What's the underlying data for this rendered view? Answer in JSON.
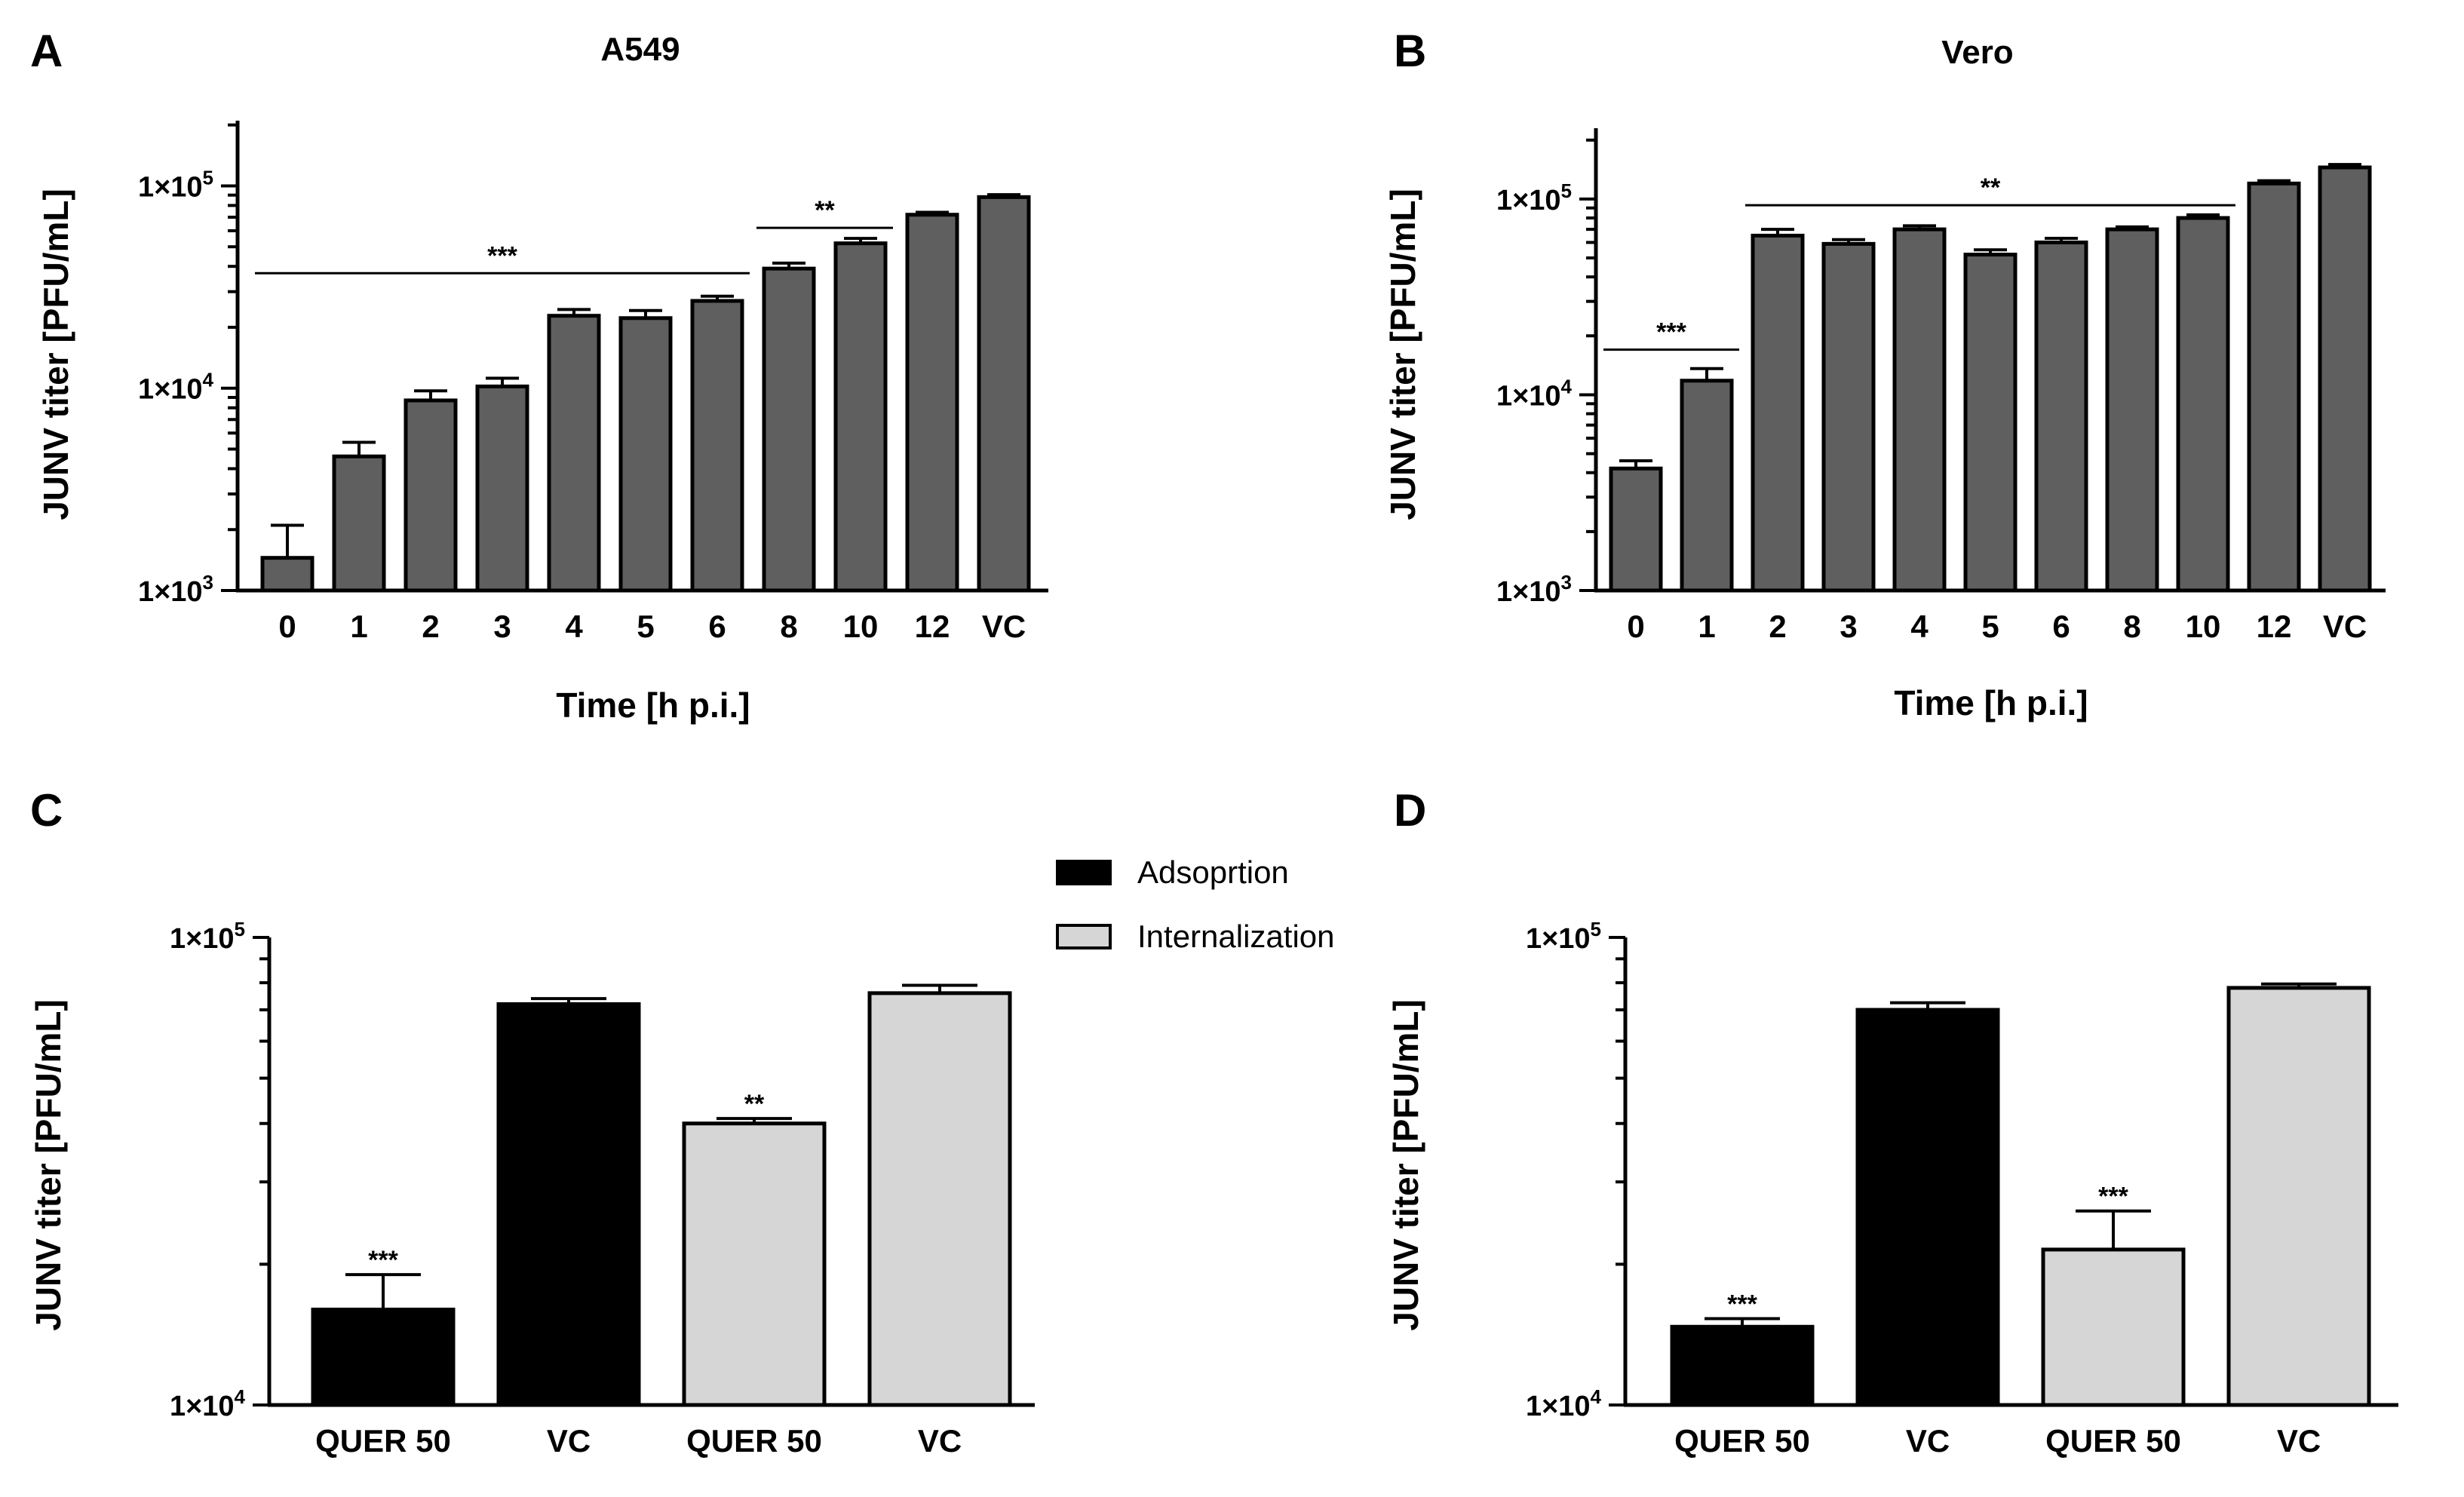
{
  "figure": {
    "colors": {
      "grey_bar": "#5f5f5f",
      "black_bar": "#000000",
      "light_bar": "#d6d6d6",
      "outline": "#000000"
    }
  },
  "legend": {
    "items": [
      {
        "label": "Adsoprtion",
        "color": "#000000"
      },
      {
        "label": "Internalization",
        "color": "#d6d6d6"
      }
    ]
  },
  "chart_data": [
    {
      "panel": "A",
      "title": "A549",
      "type": "bar",
      "ylabel": "JUNV titer [PFU/mL]",
      "xlabel": "Time [h p.i.]",
      "yscale": "log",
      "ylim": [
        1000,
        210000
      ],
      "yticks": [
        1000,
        10000,
        100000
      ],
      "ytick_labels": [
        [
          "1×10",
          "3"
        ],
        [
          "1×10",
          "4"
        ],
        [
          "1×10",
          "5"
        ]
      ],
      "categories": [
        "0",
        "1",
        "2",
        "3",
        "4",
        "5",
        "6",
        "8",
        "10",
        "12",
        "VC"
      ],
      "values": [
        1450,
        4600,
        8700,
        10200,
        22800,
        22200,
        27000,
        39000,
        52000,
        72000,
        88000
      ],
      "errors": [
        650,
        800,
        1000,
        1000,
        1700,
        2000,
        1500,
        2500,
        3000,
        2000,
        2500
      ],
      "bar_colors": [
        "#5f5f5f",
        "#5f5f5f",
        "#5f5f5f",
        "#5f5f5f",
        "#5f5f5f",
        "#5f5f5f",
        "#5f5f5f",
        "#5f5f5f",
        "#5f5f5f",
        "#5f5f5f",
        "#5f5f5f"
      ],
      "significance": [
        {
          "text": "***",
          "from": 0,
          "to": 6,
          "level": 37000
        },
        {
          "text": "**",
          "from": 7,
          "to": 8,
          "level": 62000
        }
      ]
    },
    {
      "panel": "B",
      "title": "Vero",
      "type": "bar",
      "ylabel": "JUNV titer [PFU/mL]",
      "xlabel": "Time [h p.i.]",
      "yscale": "log",
      "ylim": [
        1000,
        230000
      ],
      "yticks": [
        1000,
        10000,
        100000
      ],
      "ytick_labels": [
        [
          "1×10",
          "3"
        ],
        [
          "1×10",
          "4"
        ],
        [
          "1×10",
          "5"
        ]
      ],
      "categories": [
        "0",
        "1",
        "2",
        "3",
        "4",
        "5",
        "6",
        "8",
        "10",
        "12",
        "VC"
      ],
      "values": [
        4200,
        11800,
        65000,
        59000,
        70000,
        52000,
        60000,
        70000,
        80000,
        120000,
        145000
      ],
      "errors": [
        400,
        1800,
        5000,
        3000,
        3000,
        3000,
        3000,
        2000,
        3000,
        4000,
        5000
      ],
      "bar_colors": [
        "#5f5f5f",
        "#5f5f5f",
        "#5f5f5f",
        "#5f5f5f",
        "#5f5f5f",
        "#5f5f5f",
        "#5f5f5f",
        "#5f5f5f",
        "#5f5f5f",
        "#5f5f5f",
        "#5f5f5f"
      ],
      "significance": [
        {
          "text": "***",
          "from": 0,
          "to": 1,
          "level": 17000
        },
        {
          "text": "**",
          "from": 2,
          "to": 8,
          "level": 93000
        }
      ]
    },
    {
      "panel": "C",
      "title": "",
      "type": "bar",
      "ylabel": "JUNV titer [PFU/mL]",
      "xlabel": "",
      "yscale": "log",
      "ylim": [
        10000,
        100000
      ],
      "yticks": [
        10000,
        100000
      ],
      "ytick_labels": [
        [
          "1×10",
          "4"
        ],
        [
          "1×10",
          "5"
        ]
      ],
      "categories": [
        "QUER 50",
        "VC",
        "QUER 50",
        "VC"
      ],
      "values": [
        16000,
        72000,
        40000,
        76000
      ],
      "errors": [
        3000,
        2000,
        1000,
        3000
      ],
      "bar_colors": [
        "#000000",
        "#000000",
        "#d6d6d6",
        "#d6d6d6"
      ],
      "bar_significance": [
        "***",
        "",
        "**",
        ""
      ]
    },
    {
      "panel": "D",
      "title": "",
      "type": "bar",
      "ylabel": "JUNV titer [PFU/mL]",
      "xlabel": "",
      "yscale": "log",
      "ylim": [
        10000,
        100000
      ],
      "yticks": [
        10000,
        100000
      ],
      "ytick_labels": [
        [
          "1×10",
          "4"
        ],
        [
          "1×10",
          "5"
        ]
      ],
      "categories": [
        "QUER 50",
        "VC",
        "QUER 50",
        "VC"
      ],
      "values": [
        14700,
        70000,
        21500,
        78000
      ],
      "errors": [
        600,
        2500,
        4500,
        1500
      ],
      "bar_colors": [
        "#000000",
        "#000000",
        "#d6d6d6",
        "#d6d6d6"
      ],
      "bar_significance": [
        "***",
        "",
        "***",
        ""
      ]
    }
  ]
}
